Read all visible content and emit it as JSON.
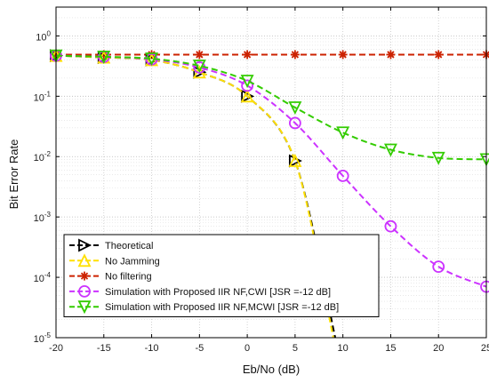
{
  "chart_data": {
    "type": "line",
    "xlabel": "Eb/No (dB)",
    "ylabel": "Bit Error Rate",
    "xlim": [
      -20,
      25
    ],
    "ylim": [
      1e-05,
      3
    ],
    "y_scale": "log",
    "grid": true,
    "legend_position": "bottom-left",
    "x_ticks": [
      -20,
      -15,
      -10,
      -5,
      0,
      5,
      10,
      15,
      20,
      25
    ],
    "x_tick_labels": [
      "-20",
      "-15",
      "-10",
      "-5",
      "0",
      "5",
      "10",
      "15",
      "20",
      "25"
    ],
    "y_ticks": [
      {
        "value": 1,
        "base": "10",
        "exp": "0"
      },
      {
        "value": 0.1,
        "base": "10",
        "exp": "-1"
      },
      {
        "value": 0.01,
        "base": "10",
        "exp": "-2"
      },
      {
        "value": 0.001,
        "base": "10",
        "exp": "-3"
      },
      {
        "value": 0.0001,
        "base": "10",
        "exp": "-4"
      },
      {
        "value": 1e-05,
        "base": "10",
        "exp": "-5"
      }
    ],
    "series": [
      {
        "name": "Theoretical",
        "color": "#000000",
        "marker": "triangle-right",
        "x": [
          -20,
          -15,
          -10,
          -5,
          0,
          5,
          9.2
        ],
        "y": [
          0.47,
          0.44,
          0.4,
          0.25,
          0.1,
          0.0085,
          1e-05
        ]
      },
      {
        "name": "No Jamming",
        "color": "#ffe000",
        "marker": "triangle-up",
        "x": [
          -20,
          -15,
          -10,
          -5,
          0,
          5,
          9.0
        ],
        "y": [
          0.47,
          0.44,
          0.4,
          0.25,
          0.1,
          0.0085,
          1e-05
        ]
      },
      {
        "name": "No filtering",
        "color": "#cc2200",
        "marker": "asterisk",
        "x": [
          -20,
          -15,
          -10,
          -5,
          0,
          5,
          10,
          15,
          20,
          25
        ],
        "y": [
          0.49,
          0.49,
          0.49,
          0.49,
          0.49,
          0.49,
          0.49,
          0.49,
          0.49,
          0.49
        ]
      },
      {
        "name": "Simulation with Proposed IIR NF,CWI [JSR =-12 dB]",
        "color": "#cc33ff",
        "marker": "circle",
        "x": [
          -20,
          -15,
          -10,
          -5,
          0,
          5,
          10,
          15,
          20,
          25
        ],
        "y": [
          0.47,
          0.45,
          0.41,
          0.3,
          0.15,
          0.036,
          0.0048,
          0.0007,
          0.00015,
          7e-05
        ]
      },
      {
        "name": "Simulation with Proposed IIR NF,MCWI [JSR =-12 dB]",
        "color": "#33cc00",
        "marker": "triangle-down",
        "x": [
          -20,
          -15,
          -10,
          -5,
          0,
          5,
          10,
          15,
          20,
          25
        ],
        "y": [
          0.47,
          0.45,
          0.42,
          0.32,
          0.18,
          0.065,
          0.025,
          0.013,
          0.0095,
          0.009
        ]
      }
    ]
  }
}
